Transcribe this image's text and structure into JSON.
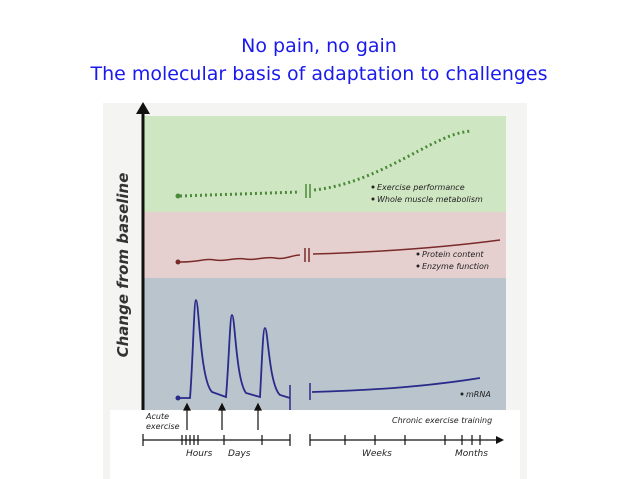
{
  "header": {
    "title": "No pain, no gain",
    "subtitle": "The molecular basis of adaptation to challenges"
  },
  "figure": {
    "y_axis_label": "Change from baseline",
    "panels": [
      {
        "labels": [
          "Exercise performance",
          "Whole muscle metabolism"
        ]
      },
      {
        "labels": [
          "Protein content",
          "Enzyme function"
        ]
      },
      {
        "labels": [
          "mRNA"
        ]
      }
    ],
    "acute_label": [
      "Acute",
      "exercise"
    ],
    "chronic_label": "Chronic exercise training",
    "timeline": [
      "Hours",
      "Days",
      "Weeks",
      "Months"
    ]
  }
}
